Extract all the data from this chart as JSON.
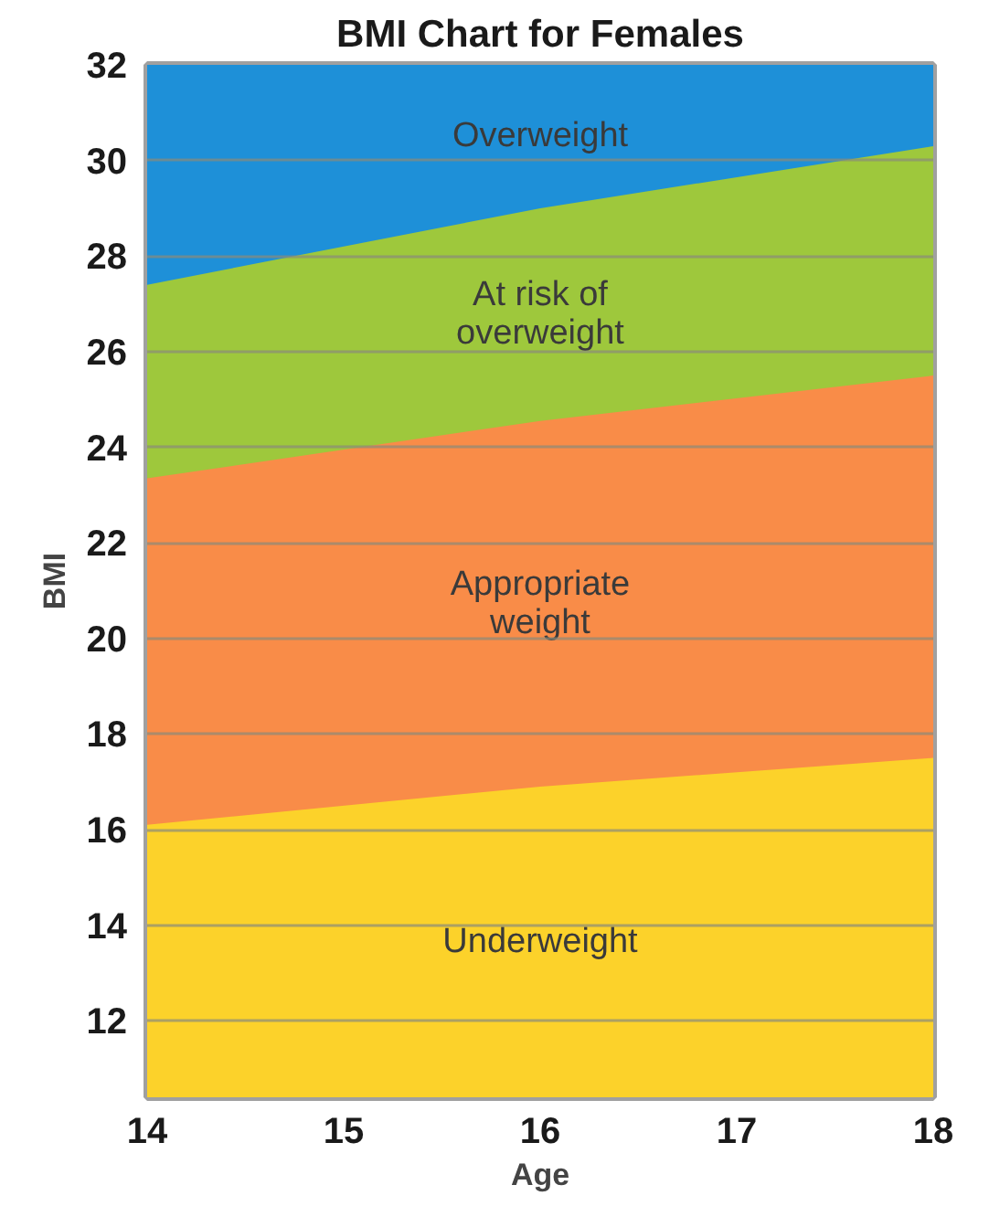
{
  "chart_data": {
    "type": "area",
    "title": "BMI Chart for Females",
    "xlabel": "Age",
    "ylabel": "BMI",
    "x": [
      14,
      16,
      18
    ],
    "xlim": [
      14,
      18
    ],
    "xticks": [
      14,
      15,
      16,
      17,
      18
    ],
    "ylim": [
      10.4,
      32
    ],
    "yticks": [
      12,
      14,
      16,
      18,
      20,
      22,
      24,
      26,
      28,
      30,
      32
    ],
    "grid": "y",
    "series": [
      {
        "name": "Overweight",
        "color": "#1e90d8",
        "values": [
          32,
          32,
          32
        ]
      },
      {
        "name": "At risk of\noverweight",
        "color": "#9ec83c",
        "values": [
          27.4,
          29.0,
          30.3
        ]
      },
      {
        "name": "Appropriate\nweight",
        "color": "#f98c48",
        "values": [
          23.35,
          24.55,
          25.5
        ]
      },
      {
        "name": "Underweight",
        "color": "#fcd22a",
        "values": [
          16.1,
          16.9,
          17.5
        ]
      }
    ]
  }
}
